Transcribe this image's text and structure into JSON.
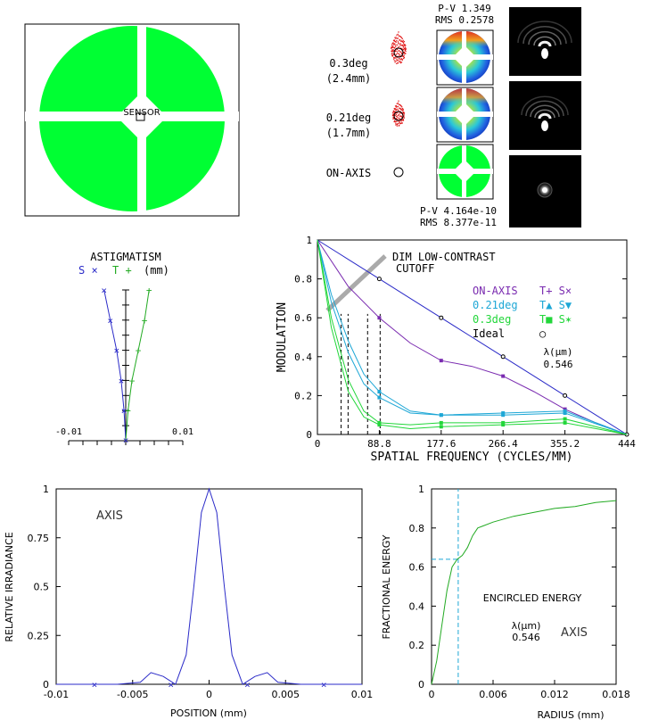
{
  "colors": {
    "green": "#00ff33",
    "blue": "#2b2bc8",
    "cyan": "#1ea7d6",
    "lime": "#22d63a",
    "purple": "#7a2bb0",
    "black": "#000000",
    "gray": "#aaaaaa"
  },
  "aperture": {
    "label": "SENSOR"
  },
  "spots": {
    "rows": [
      {
        "field": "0.3deg",
        "height": "(2.4mm)"
      },
      {
        "field": "0.21deg",
        "height": "(1.7mm)"
      },
      {
        "field": "ON-AXIS",
        "height": ""
      }
    ],
    "pv_top": "P-V 1.349",
    "rms_top": "RMS 0.2578",
    "pv_bottom": "P-V 4.164e-10",
    "rms_bottom": "RMS 8.377e-11"
  },
  "astig": {
    "title": "ASTIGMATISM",
    "legend_s": "S ×",
    "legend_t": "T +",
    "units": "(mm)",
    "x_min_label": "-0.01",
    "x_max_label": "0.01"
  },
  "mtf": {
    "annotation_line1": "DIM LOW-CONTRAST",
    "annotation_line2": "CUTOFF",
    "legend": [
      {
        "label": "ON-AXIS",
        "marks": "T+ S×",
        "color": "#7a2bb0"
      },
      {
        "label": "0.21deg",
        "marks": "T▲ S▼",
        "color": "#1ea7d6"
      },
      {
        "label": "0.3deg",
        "marks": "T■ S✶",
        "color": "#22d63a"
      },
      {
        "label": "Ideal",
        "marks": "○",
        "color": "#000000"
      }
    ],
    "lambda_label": "λ(μm)",
    "lambda_value": "0.546"
  },
  "psf_annot": "AXIS",
  "ee": {
    "title": "ENCIRCLED ENERGY",
    "lambda_label": "λ(μm)",
    "lambda_value": "0.546",
    "field": "AXIS"
  },
  "chart_data": [
    {
      "type": "line",
      "title": "ASTIGMATISM",
      "xlabel": "",
      "ylabel": "",
      "xlim": [
        -0.01,
        0.01
      ],
      "series": [
        {
          "name": "S",
          "x": [
            0,
            -0.0003,
            -0.0008,
            -0.0016,
            -0.0027,
            -0.0038
          ],
          "y": [
            0,
            0.2,
            0.4,
            0.6,
            0.8,
            1.0
          ]
        },
        {
          "name": "T",
          "x": [
            0,
            0.0004,
            0.0011,
            0.0022,
            0.0033,
            0.0041
          ],
          "y": [
            0,
            0.2,
            0.4,
            0.6,
            0.8,
            1.0
          ]
        }
      ]
    },
    {
      "type": "line",
      "title": "",
      "xlabel": "SPATIAL FREQUENCY (CYCLES/MM)",
      "ylabel": "MODULATION",
      "xlim": [
        0,
        444
      ],
      "ylim": [
        0,
        1
      ],
      "xticks": [
        "0",
        "88.8",
        "177.6",
        "266.4",
        "355.2",
        "444"
      ],
      "yticks": [
        "0",
        "0.2",
        "0.4",
        "0.6",
        "0.8",
        "1"
      ],
      "series": [
        {
          "name": "Ideal",
          "x": [
            0,
            44.4,
            88.8,
            133.2,
            177.6,
            222,
            266.4,
            310.8,
            355.2,
            399.6,
            444
          ],
          "y": [
            1,
            0.9,
            0.8,
            0.7,
            0.6,
            0.5,
            0.4,
            0.3,
            0.2,
            0.1,
            0
          ]
        },
        {
          "name": "ON-AXIS",
          "x": [
            0,
            44.4,
            88.8,
            133.2,
            177.6,
            222,
            266.4,
            310.8,
            355.2,
            399.6,
            444
          ],
          "y": [
            1,
            0.76,
            0.6,
            0.47,
            0.38,
            0.35,
            0.3,
            0.22,
            0.13,
            0.06,
            0
          ]
        },
        {
          "name": "0.21deg T",
          "x": [
            0,
            20,
            44.4,
            66.6,
            88.8,
            133.2,
            177.6,
            266.4,
            355.2,
            444
          ],
          "y": [
            1,
            0.72,
            0.48,
            0.31,
            0.22,
            0.12,
            0.1,
            0.11,
            0.12,
            0
          ]
        },
        {
          "name": "0.21deg S",
          "x": [
            0,
            20,
            44.4,
            66.6,
            88.8,
            133.2,
            177.6,
            266.4,
            355.2,
            444
          ],
          "y": [
            1,
            0.68,
            0.42,
            0.26,
            0.19,
            0.11,
            0.1,
            0.1,
            0.11,
            0
          ]
        },
        {
          "name": "0.3deg T",
          "x": [
            0,
            20,
            44.4,
            66.6,
            88.8,
            133.2,
            177.6,
            266.4,
            355.2,
            444
          ],
          "y": [
            1,
            0.6,
            0.28,
            0.12,
            0.06,
            0.05,
            0.06,
            0.06,
            0.08,
            0
          ]
        },
        {
          "name": "0.3deg S",
          "x": [
            0,
            20,
            44.4,
            66.6,
            88.8,
            133.2,
            177.6,
            266.4,
            355.2,
            444
          ],
          "y": [
            1,
            0.55,
            0.22,
            0.09,
            0.05,
            0.03,
            0.04,
            0.05,
            0.06,
            0
          ]
        }
      ],
      "cutoff_x": [
        34,
        44,
        72,
        90
      ]
    },
    {
      "type": "line",
      "title": "",
      "xlabel": "POSITION (mm)",
      "ylabel": "RELATIVE IRRADIANCE",
      "xlim": [
        -0.01,
        0.01
      ],
      "ylim": [
        0,
        1
      ],
      "xticks": [
        "-0.01",
        "-0.005",
        "0",
        "0.005",
        "0.01"
      ],
      "yticks": [
        "0",
        "0.25",
        "0.5",
        "0.75",
        "1"
      ],
      "series": [
        {
          "name": "AXIS",
          "x": [
            -0.01,
            -0.006,
            -0.0045,
            -0.0038,
            -0.003,
            -0.0022,
            -0.0015,
            -0.001,
            -0.0005,
            0,
            0.0005,
            0.001,
            0.0015,
            0.0022,
            0.003,
            0.0038,
            0.0045,
            0.006,
            0.01
          ],
          "y": [
            0,
            0,
            0.01,
            0.06,
            0.04,
            0.0,
            0.15,
            0.5,
            0.88,
            1.0,
            0.88,
            0.5,
            0.15,
            0.0,
            0.04,
            0.06,
            0.01,
            0,
            0
          ]
        }
      ]
    },
    {
      "type": "line",
      "title": "ENCIRCLED ENERGY",
      "xlabel": "RADIUS (mm)",
      "ylabel": "FRACTIONAL ENERGY",
      "xlim": [
        0,
        0.018
      ],
      "ylim": [
        0,
        1
      ],
      "xticks": [
        "0",
        "0.006",
        "0.012",
        "0.018"
      ],
      "yticks": [
        "0",
        "0.2",
        "0.4",
        "0.6",
        "0.8",
        "1"
      ],
      "series": [
        {
          "name": "AXIS",
          "x": [
            0,
            0.0005,
            0.001,
            0.0015,
            0.002,
            0.0025,
            0.003,
            0.0035,
            0.004,
            0.0045,
            0.005,
            0.006,
            0.008,
            0.01,
            0.012,
            0.014,
            0.016,
            0.018
          ],
          "y": [
            0,
            0.12,
            0.3,
            0.48,
            0.6,
            0.64,
            0.66,
            0.7,
            0.76,
            0.8,
            0.81,
            0.83,
            0.86,
            0.88,
            0.9,
            0.91,
            0.93,
            0.94
          ]
        }
      ],
      "marker_radius": 0.0026,
      "marker_energy": 0.64
    }
  ]
}
